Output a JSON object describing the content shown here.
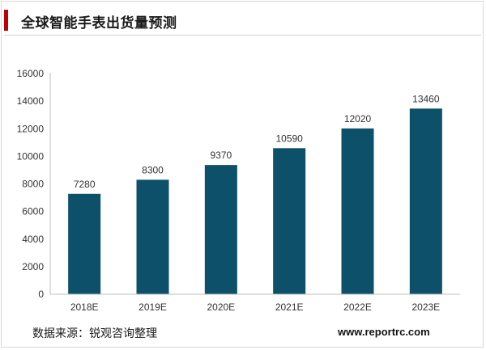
{
  "header": {
    "title": "全球智能手表出货量预测"
  },
  "chart_data": {
    "type": "bar",
    "title": "全球智能手表出货量预测",
    "categories": [
      "2018E",
      "2019E",
      "2020E",
      "2021E",
      "2022E",
      "2023E"
    ],
    "values": [
      7280,
      8300,
      9370,
      10590,
      12020,
      13460
    ],
    "ylim": [
      0,
      16000
    ],
    "yticks": [
      0,
      2000,
      4000,
      6000,
      8000,
      10000,
      12000,
      14000,
      16000
    ],
    "grid": false,
    "bar_color": "#0d5069",
    "data_labels": true
  },
  "footer": {
    "source": "数据来源：锐观咨询整理",
    "site": "www.reportrc.com"
  }
}
